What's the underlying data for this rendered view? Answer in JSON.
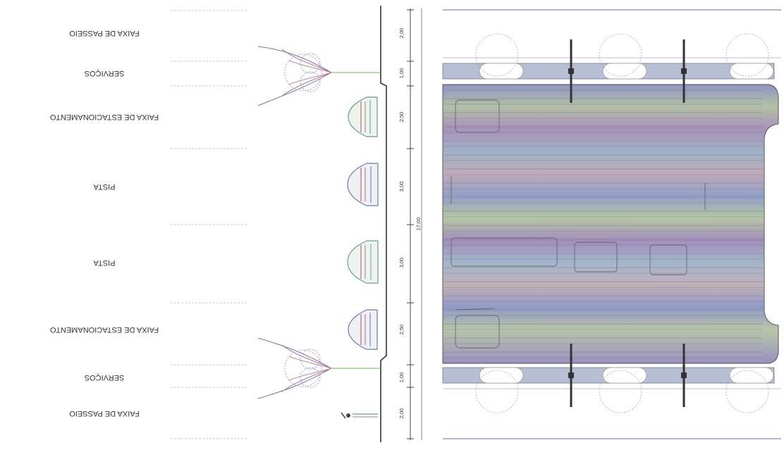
{
  "drawing": {
    "rows": [
      {
        "label": "FAIXA DE PASSEIO",
        "width": "2,00"
      },
      {
        "label": "SERVIÇOS",
        "width": "1,00"
      },
      {
        "label": "FAIXA DE ESTACIONAMENTO",
        "width": "2,50"
      },
      {
        "label": "PISTA",
        "width": "3,00"
      },
      {
        "label": "PISTA",
        "width": "3,00"
      },
      {
        "label": "FAIXA DE ESTACIONAMENTO",
        "width": "2,50"
      },
      {
        "label": "SERVIÇOS",
        "width": "1,00"
      },
      {
        "label": "FAIXA DE PASSEIO",
        "width": "2,00"
      }
    ],
    "total_width": "17,00"
  },
  "colors": {
    "line": "#333333",
    "tree": "#7a6a9a",
    "road": "#9c9cc8",
    "strip": "#b7c7a8"
  }
}
